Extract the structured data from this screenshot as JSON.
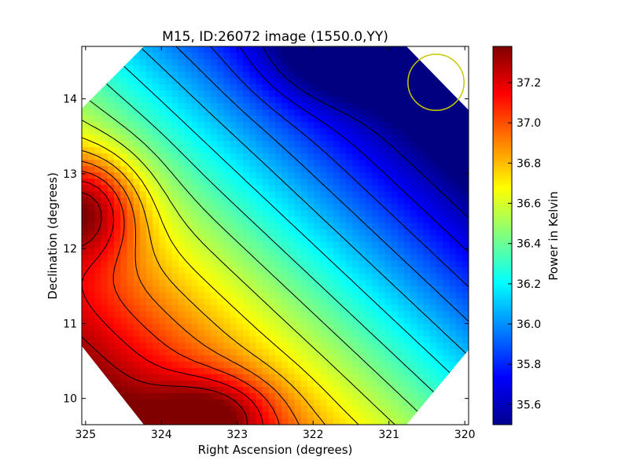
{
  "chart_data": {
    "type": "heatmap",
    "title": "M15, ID:26072 image (1550.0,YY)",
    "xlabel": "Right Ascension (degrees)",
    "ylabel": "Declination (degrees)",
    "colorbar_label": "Power in Kelvin",
    "xlim": [
      325.05,
      319.95
    ],
    "ylim": [
      9.65,
      14.7
    ],
    "x_ticks": [
      325,
      324,
      323,
      322,
      321,
      320
    ],
    "y_ticks": [
      10,
      11,
      12,
      13,
      14
    ],
    "colorbar_range": [
      35.5,
      37.38
    ],
    "colorbar_ticks": [
      "35.6",
      "35.8",
      "36.0",
      "36.2",
      "36.4",
      "36.6",
      "36.8",
      "37.0",
      "37.2"
    ],
    "colormap": "jet",
    "contour_color": "#000000",
    "beam_marker": {
      "ra": 320.38,
      "dec": 14.22,
      "radius_deg": 0.37,
      "color": "#c8c800"
    },
    "features": {
      "maximum": {
        "ra": 325.0,
        "dec": 12.55,
        "value": 37.38
      },
      "secondary_maximum": {
        "ra": 323.3,
        "dec": 9.8,
        "value": 37.15
      },
      "minimum": {
        "ra": 321.7,
        "dec": 14.6,
        "value": 35.5
      }
    }
  }
}
